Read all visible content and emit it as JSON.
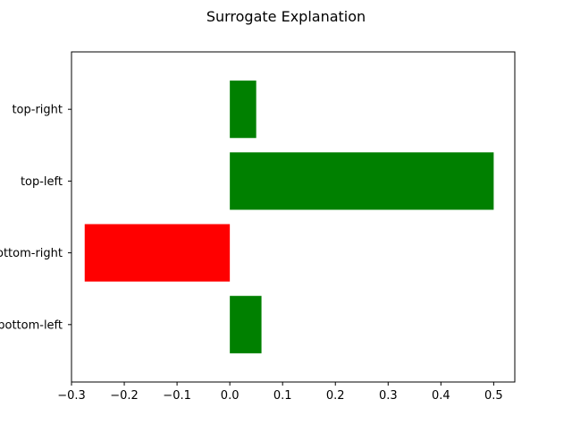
{
  "chart_data": {
    "type": "bar",
    "orientation": "horizontal",
    "title": "Surrogate Explanation",
    "xlabel": "",
    "ylabel": "",
    "categories": [
      "bottom-left",
      "bottom-right",
      "top-left",
      "top-right"
    ],
    "values": [
      0.06,
      -0.275,
      0.5,
      0.05
    ],
    "xlim": [
      -0.3,
      0.54
    ],
    "xticks": [
      -0.3,
      -0.2,
      -0.1,
      0.0,
      0.1,
      0.2,
      0.3,
      0.4,
      0.5
    ],
    "xtick_labels": [
      "−0.3",
      "−0.2",
      "−0.1",
      "0.0",
      "0.1",
      "0.2",
      "0.3",
      "0.4",
      "0.5"
    ],
    "grid": false,
    "legend": "none",
    "colors": {
      "positive": "#008000",
      "negative": "#ff0000",
      "axes": "#000000"
    }
  }
}
